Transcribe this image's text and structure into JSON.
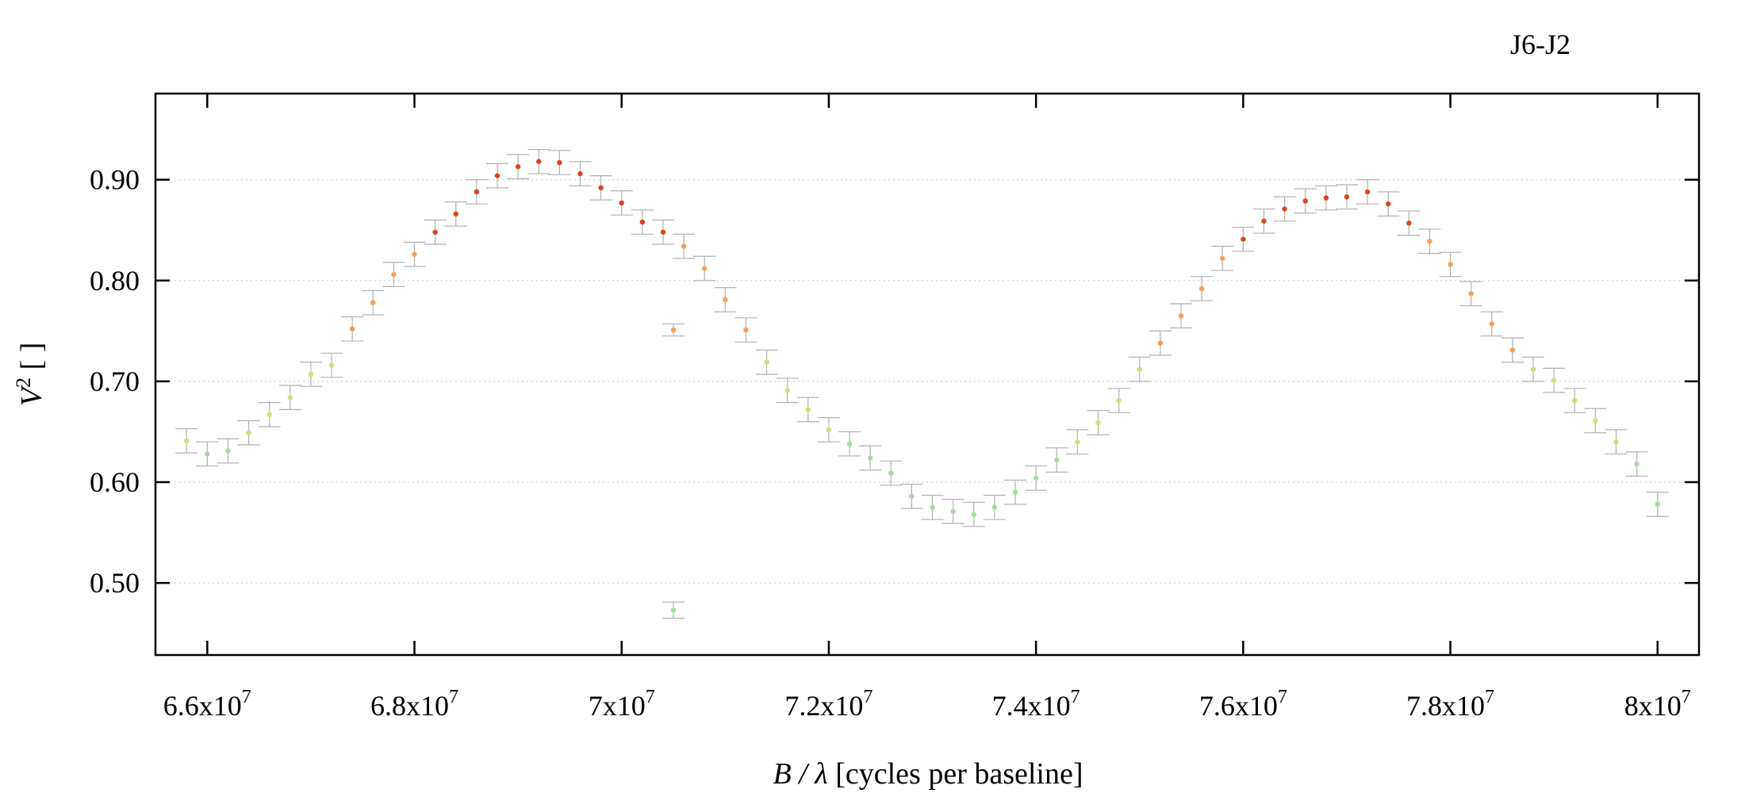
{
  "chart_data": {
    "type": "scatter",
    "title": "J6-J2",
    "xlabel": "B / λ [cycles per baseline]",
    "xlabel_parts": {
      "var": "B",
      "sep": " / ",
      "lambda": "λ",
      "rest": " [cycles per baseline]"
    },
    "ylabel": "V² [ ]",
    "ylabel_parts": {
      "var": "V",
      "sup": "2",
      "rest": " [ ]"
    },
    "xlim": [
      65500000,
      80400000
    ],
    "ylim": [
      0.4285,
      0.9855
    ],
    "xticks": [
      {
        "value": 66000000,
        "mant": "6.6x10",
        "exp": "7"
      },
      {
        "value": 68000000,
        "mant": "6.8x10",
        "exp": "7"
      },
      {
        "value": 70000000,
        "mant": "7x10",
        "exp": "7"
      },
      {
        "value": 72000000,
        "mant": "7.2x10",
        "exp": "7"
      },
      {
        "value": 74000000,
        "mant": "7.4x10",
        "exp": "7"
      },
      {
        "value": 76000000,
        "mant": "7.6x10",
        "exp": "7"
      },
      {
        "value": 78000000,
        "mant": "7.8x10",
        "exp": "7"
      },
      {
        "value": 80000000,
        "mant": "8x10",
        "exp": "7"
      }
    ],
    "yticks": [
      {
        "value": 0.5,
        "label": "0.50"
      },
      {
        "value": 0.6,
        "label": "0.60"
      },
      {
        "value": 0.7,
        "label": "0.70"
      },
      {
        "value": 0.8,
        "label": "0.80"
      },
      {
        "value": 0.9,
        "label": "0.90"
      }
    ],
    "grid": "horizontal dotted",
    "legend": "none",
    "colors": {
      "low": "#a6dba0",
      "mid": "#d9d97a",
      "midhigh": "#f4a05a",
      "high": "#e0401e",
      "errorbar": "#b0b0b0"
    },
    "points": [
      [
        65800000,
        0.641,
        0.012
      ],
      [
        66000000,
        0.628,
        0.012
      ],
      [
        66200000,
        0.631,
        0.012
      ],
      [
        66400000,
        0.649,
        0.012
      ],
      [
        66600000,
        0.667,
        0.012
      ],
      [
        66800000,
        0.684,
        0.012
      ],
      [
        67000000,
        0.707,
        0.012
      ],
      [
        67200000,
        0.716,
        0.012
      ],
      [
        67400000,
        0.752,
        0.012
      ],
      [
        67600000,
        0.778,
        0.012
      ],
      [
        67800000,
        0.806,
        0.012
      ],
      [
        68000000,
        0.826,
        0.012
      ],
      [
        68200000,
        0.848,
        0.012
      ],
      [
        68400000,
        0.866,
        0.012
      ],
      [
        68600000,
        0.888,
        0.012
      ],
      [
        68800000,
        0.904,
        0.012
      ],
      [
        69000000,
        0.913,
        0.012
      ],
      [
        69200000,
        0.918,
        0.012
      ],
      [
        69400000,
        0.917,
        0.012
      ],
      [
        69600000,
        0.906,
        0.012
      ],
      [
        69800000,
        0.892,
        0.012
      ],
      [
        70000000,
        0.877,
        0.012
      ],
      [
        70200000,
        0.858,
        0.012
      ],
      [
        70400000,
        0.848,
        0.012
      ],
      [
        70500000,
        0.751,
        0.006
      ],
      [
        70500000,
        0.473,
        0.008
      ],
      [
        70600000,
        0.834,
        0.012
      ],
      [
        70800000,
        0.812,
        0.012
      ],
      [
        71000000,
        0.781,
        0.012
      ],
      [
        71200000,
        0.751,
        0.012
      ],
      [
        71400000,
        0.719,
        0.012
      ],
      [
        71600000,
        0.691,
        0.012
      ],
      [
        71800000,
        0.672,
        0.012
      ],
      [
        72000000,
        0.652,
        0.012
      ],
      [
        72200000,
        0.638,
        0.012
      ],
      [
        72400000,
        0.624,
        0.012
      ],
      [
        72600000,
        0.609,
        0.012
      ],
      [
        72800000,
        0.586,
        0.012
      ],
      [
        73000000,
        0.575,
        0.012
      ],
      [
        73200000,
        0.571,
        0.012
      ],
      [
        73400000,
        0.568,
        0.012
      ],
      [
        73600000,
        0.575,
        0.012
      ],
      [
        73800000,
        0.59,
        0.012
      ],
      [
        74000000,
        0.604,
        0.012
      ],
      [
        74200000,
        0.622,
        0.012
      ],
      [
        74400000,
        0.64,
        0.012
      ],
      [
        74600000,
        0.659,
        0.012
      ],
      [
        74800000,
        0.681,
        0.012
      ],
      [
        75000000,
        0.712,
        0.012
      ],
      [
        75200000,
        0.738,
        0.012
      ],
      [
        75400000,
        0.765,
        0.012
      ],
      [
        75600000,
        0.792,
        0.012
      ],
      [
        75800000,
        0.822,
        0.012
      ],
      [
        76000000,
        0.841,
        0.012
      ],
      [
        76200000,
        0.859,
        0.012
      ],
      [
        76400000,
        0.871,
        0.012
      ],
      [
        76600000,
        0.879,
        0.012
      ],
      [
        76800000,
        0.882,
        0.012
      ],
      [
        77000000,
        0.883,
        0.012
      ],
      [
        77200000,
        0.888,
        0.012
      ],
      [
        77400000,
        0.876,
        0.012
      ],
      [
        77600000,
        0.857,
        0.012
      ],
      [
        77800000,
        0.839,
        0.012
      ],
      [
        78000000,
        0.816,
        0.012
      ],
      [
        78200000,
        0.787,
        0.012
      ],
      [
        78400000,
        0.757,
        0.012
      ],
      [
        78600000,
        0.731,
        0.012
      ],
      [
        78800000,
        0.712,
        0.012
      ],
      [
        79000000,
        0.701,
        0.012
      ],
      [
        79200000,
        0.681,
        0.012
      ],
      [
        79400000,
        0.661,
        0.012
      ],
      [
        79600000,
        0.64,
        0.012
      ],
      [
        79800000,
        0.618,
        0.012
      ],
      [
        80000000,
        0.578,
        0.012
      ]
    ]
  }
}
